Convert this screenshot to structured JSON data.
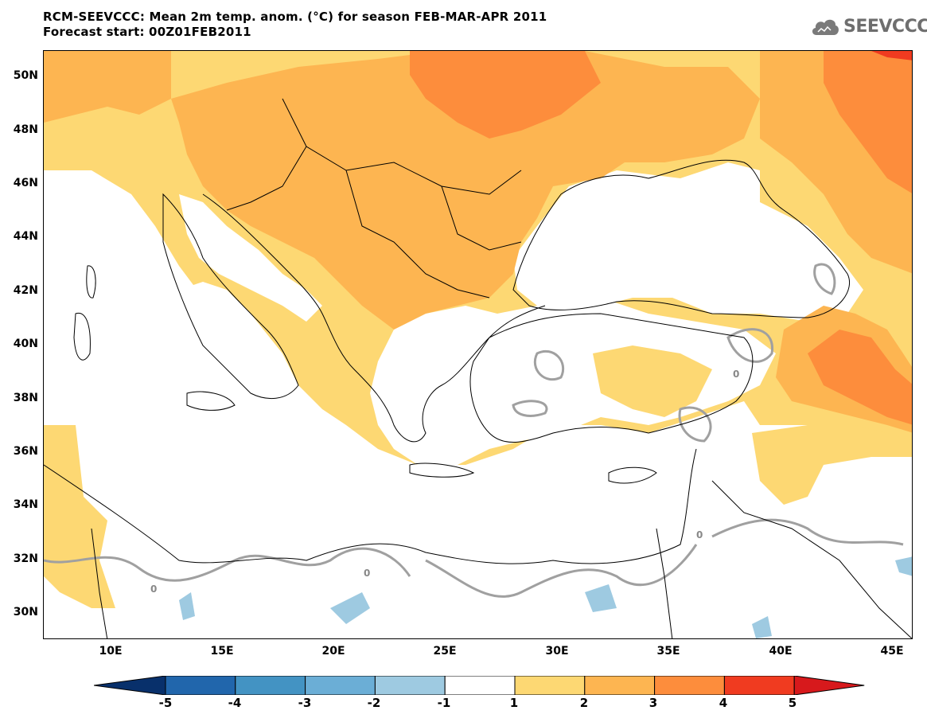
{
  "header": {
    "title_line1": "RCM-SEEVCCC: Mean 2m temp. anom. (°C) for season FEB-MAR-APR 2011",
    "title_line2": "Forecast start: 00Z01FEB2011"
  },
  "logo": {
    "text": "SEEVCCC",
    "icon": "cloud-icon"
  },
  "axes": {
    "lat_labels": [
      "50N",
      "48N",
      "46N",
      "44N",
      "42N",
      "40N",
      "38N",
      "36N",
      "34N",
      "32N",
      "30N"
    ],
    "lon_labels": [
      "10E",
      "15E",
      "20E",
      "25E",
      "30E",
      "35E",
      "40E",
      "45E"
    ]
  },
  "contour_labels": [
    "0",
    "0",
    "0",
    "0"
  ],
  "colorbar": {
    "labels": [
      "-5",
      "-4",
      "-3",
      "-2",
      "-1",
      "1",
      "2",
      "3",
      "4",
      "5"
    ],
    "colors": [
      "#08306b",
      "#2166ac",
      "#4393c3",
      "#6baed6",
      "#9ecae1",
      "#ffffff",
      "#fdd873",
      "#fdb551",
      "#fd8d3c",
      "#f03b20",
      "#d7191c"
    ]
  },
  "colors": {
    "anom_1_2": "#fdd873",
    "anom_2_3": "#fdb551",
    "anom_3_4": "#fd8d3c",
    "anom_4_5": "#f03b20",
    "neg_2_1": "#9ecae1",
    "contour": "#a0a0a0"
  }
}
